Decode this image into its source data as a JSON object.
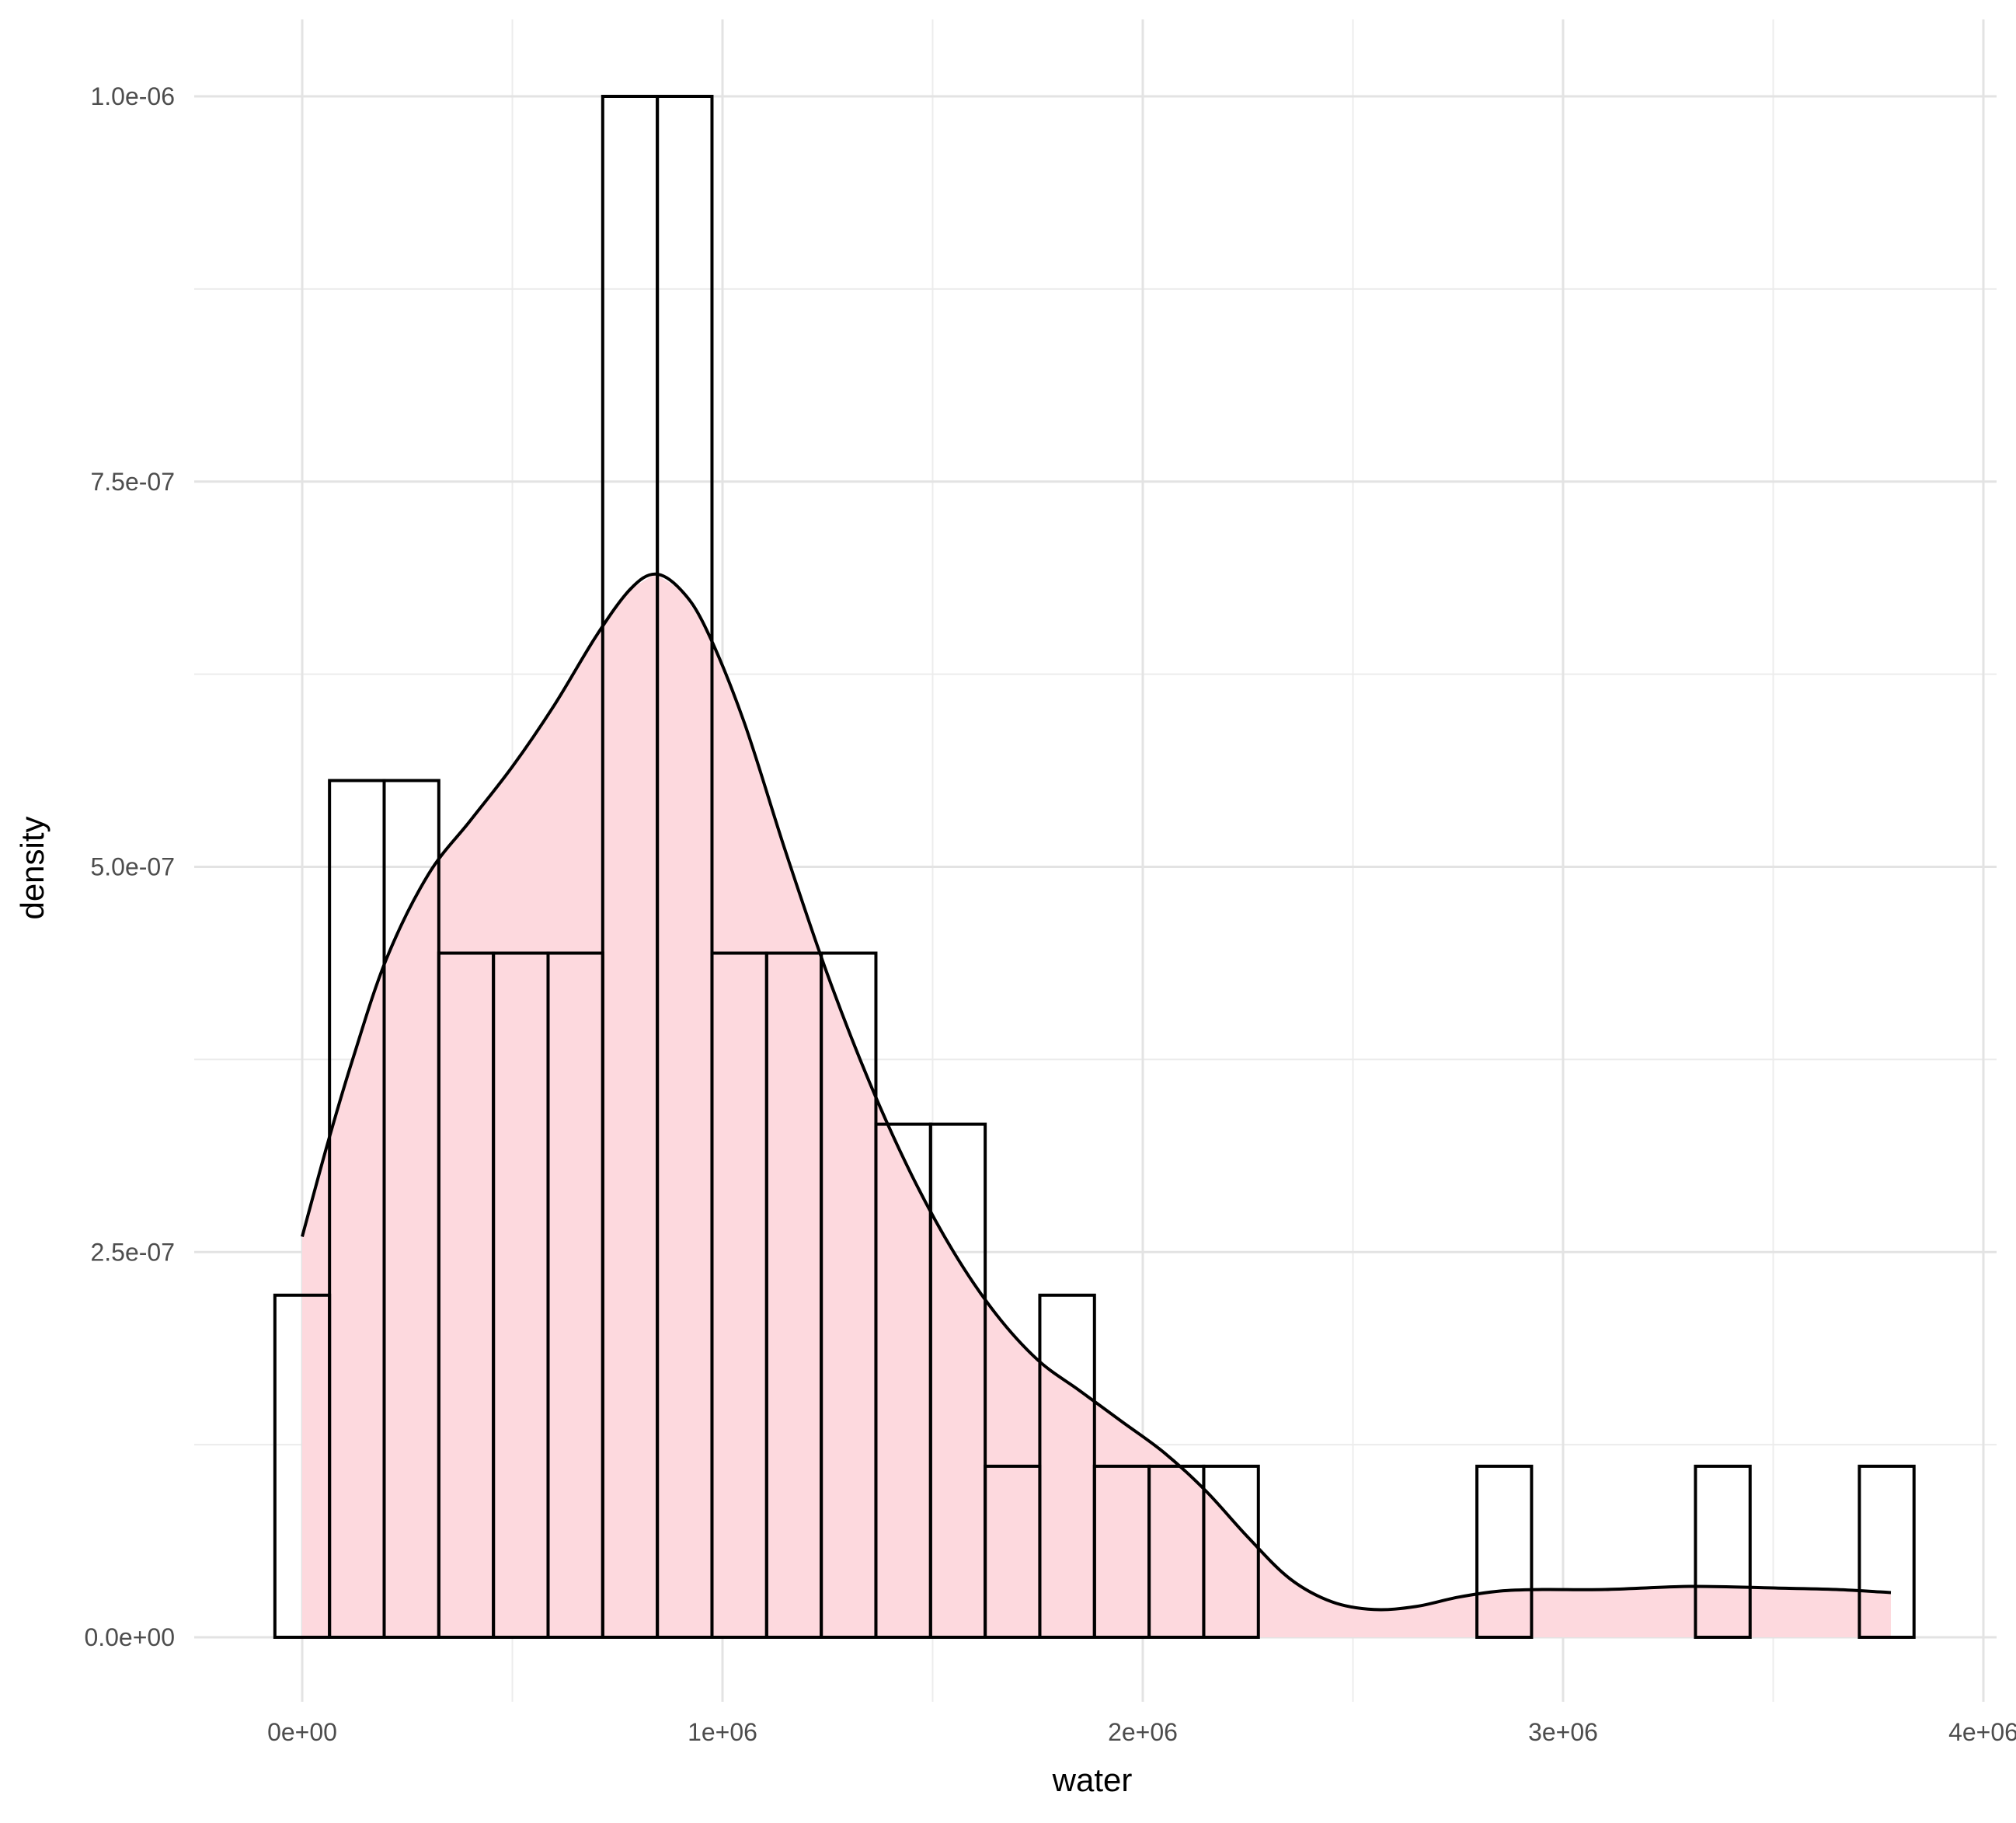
{
  "chart_data": {
    "type": "histogram",
    "title": "",
    "xlabel": "water",
    "ylabel": "density",
    "xlim": [
      -240000,
      4000000
    ],
    "ylim": [
      -4.5e-08,
      1.05e-06
    ],
    "x_ticks": [
      0,
      1000000,
      2000000,
      3000000,
      4000000
    ],
    "x_tick_labels": [
      "0e+00",
      "1e+06",
      "2e+06",
      "3e+06",
      "4e+06"
    ],
    "y_ticks": [
      0,
      2.5e-07,
      5e-07,
      7.5e-07,
      1e-06
    ],
    "y_tick_labels": [
      "0.0e+00",
      "2.5e-07",
      "5.0e-07",
      "7.5e-07",
      "1.0e-06"
    ],
    "grid": true,
    "histogram": {
      "bin_edges": [
        -65000,
        65000,
        195000,
        325000,
        455000,
        585000,
        715000,
        845000,
        975000,
        1105000,
        1235000,
        1365000,
        1495000,
        1625000,
        1755000,
        1885000,
        2015000,
        2145000,
        2275000,
        2405000,
        2535000,
        2665000,
        2795000,
        2925000,
        3055000,
        3185000,
        3315000,
        3445000,
        3575000,
        3705000,
        3835000
      ],
      "density": [
        2.22e-07,
        5.56e-07,
        5.56e-07,
        4.44e-07,
        4.44e-07,
        4.44e-07,
        1e-06,
        1e-06,
        4.44e-07,
        4.44e-07,
        4.44e-07,
        3.33e-07,
        3.33e-07,
        1.11e-07,
        2.22e-07,
        1.11e-07,
        1.11e-07,
        1.11e-07,
        0,
        0,
        0,
        0,
        1.11e-07,
        0,
        0,
        0,
        1.11e-07,
        0,
        0,
        1.11e-07
      ],
      "fill": "none",
      "outline": "#000000"
    },
    "density_curve": {
      "x": [
        0,
        60000,
        120000,
        200000,
        300000,
        400000,
        500000,
        600000,
        700000,
        780000,
        840000,
        900000,
        960000,
        1050000,
        1150000,
        1250000,
        1350000,
        1450000,
        1550000,
        1650000,
        1750000,
        1850000,
        1950000,
        2050000,
        2150000,
        2250000,
        2350000,
        2450000,
        2550000,
        2650000,
        2750000,
        2850000,
        2950000,
        3100000,
        3300000,
        3500000,
        3650000,
        3780000
      ],
      "y": [
        2.6e-07,
        3.2e-07,
        3.75e-07,
        4.4e-07,
        4.95e-07,
        5.3e-07,
        5.65e-07,
        6.05e-07,
        6.5e-07,
        6.8e-07,
        6.9e-07,
        6.8e-07,
        6.55e-07,
        5.95e-07,
        5.1e-07,
        4.3e-07,
        3.6e-07,
        3e-07,
        2.5e-07,
        2.1e-07,
        1.8e-07,
        1.6e-07,
        1.4e-07,
        1.2e-07,
        9.5e-08,
        6.5e-08,
        3.8e-08,
        2.3e-08,
        1.8e-08,
        2e-08,
        2.6e-08,
        3e-08,
        3.1e-08,
        3.1e-08,
        3.3e-08,
        3.2e-08,
        3.1e-08,
        2.9e-08
      ],
      "fill": "#fdd9de",
      "line": "#000000"
    }
  }
}
